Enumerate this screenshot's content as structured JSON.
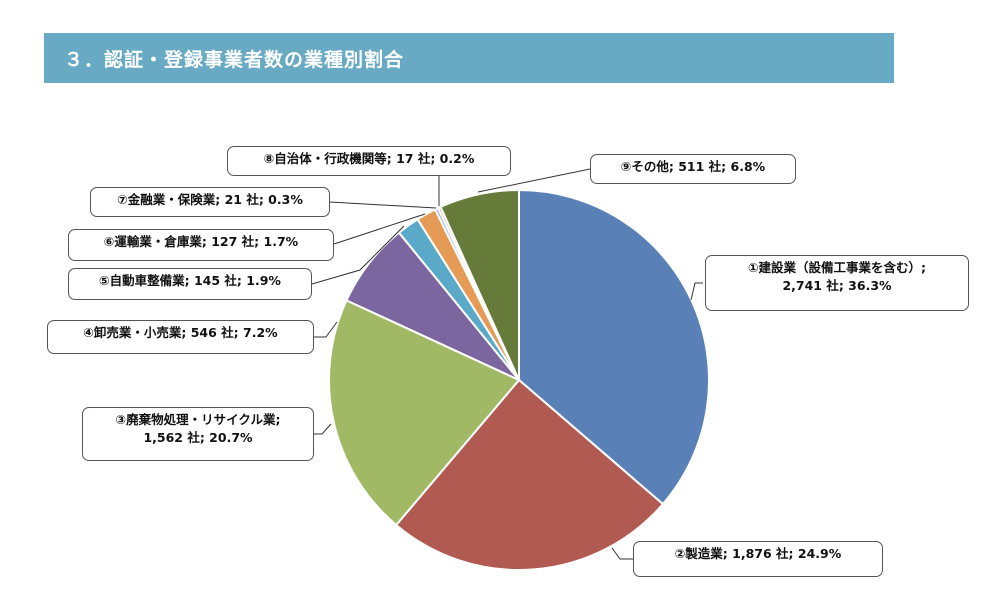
{
  "header": {
    "title": "３．認証・登録事業者数の業種別割合"
  },
  "colors": {
    "banner_bg": "#68a9c4",
    "banner_text": "#ffffff"
  },
  "chart_data": {
    "type": "pie",
    "title": "",
    "unit": "社",
    "start": "12 o'clock, clockwise",
    "slices": [
      {
        "label": "①建設業（設備工事業を含む）",
        "value": 2741,
        "percent": 36.3,
        "color": "#5a80b8",
        "text_line1": "①建設業（設備工事業を含む）;",
        "text_line2": "2,741 社; 36.3%"
      },
      {
        "label": "②製造業",
        "value": 1876,
        "percent": 24.9,
        "color": "#b05a52",
        "text_line1": "②製造業; 1,876 社; 24.9%",
        "text_line2": ""
      },
      {
        "label": "③廃棄物処理・リサイクル業",
        "value": 1562,
        "percent": 20.7,
        "color": "#a1b964",
        "text_line1": "③廃棄物処理・リサイクル業;",
        "text_line2": "1,562 社; 20.7%"
      },
      {
        "label": "④卸売業・小売業",
        "value": 546,
        "percent": 7.2,
        "color": "#7b66a0",
        "text_line1": "④卸売業・小売業; 546 社; 7.2%",
        "text_line2": ""
      },
      {
        "label": "⑤自動車整備業",
        "value": 145,
        "percent": 1.9,
        "color": "#5aa9c9",
        "text_line1": "⑤自動車整備業; 145 社; 1.9%",
        "text_line2": ""
      },
      {
        "label": "⑥運輸業・倉庫業",
        "value": 127,
        "percent": 1.7,
        "color": "#e59a55",
        "text_line1": "⑥運輸業・倉庫業; 127 社; 1.7%",
        "text_line2": ""
      },
      {
        "label": "⑦金融業・保険業",
        "value": 21,
        "percent": 0.3,
        "color": "#9db3d6",
        "text_line1": "⑦金融業・保険業; 21 社; 0.3%",
        "text_line2": ""
      },
      {
        "label": "⑧自治体・行政機関等",
        "value": 17,
        "percent": 0.2,
        "color": "#d69895",
        "text_line1": "⑧自治体・行政機関等; 17 社; 0.2%",
        "text_line2": ""
      },
      {
        "label": "⑨その他",
        "value": 511,
        "percent": 6.8,
        "color": "#667a3a",
        "text_line1": "⑨その他; 511 社; 6.8%",
        "text_line2": ""
      }
    ]
  }
}
